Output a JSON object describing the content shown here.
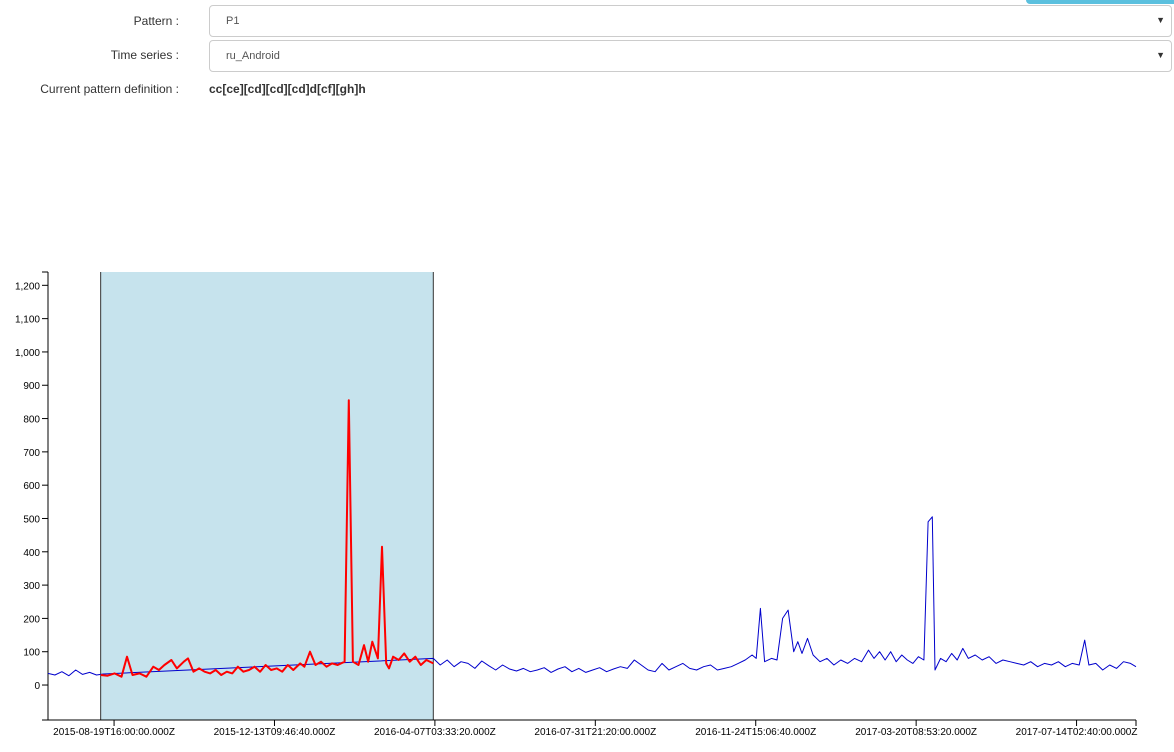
{
  "form": {
    "pattern_label": "Pattern :",
    "pattern_value": "P1",
    "timeseries_label": "Time series :",
    "timeseries_value": "ru_Android",
    "definition_label": "Current pattern definition :",
    "definition_value": "cc[ce][cd][cd][cd]d[cf][gh]h"
  },
  "colors": {
    "highlight": "#c6e3ed",
    "match_series": "#ff0000",
    "base_series": "#0000cc",
    "button": "#5bc0de"
  },
  "chart_data": {
    "type": "line",
    "ylim": [
      -105,
      1240
    ],
    "y_ticks": [
      0,
      100,
      200,
      300,
      400,
      500,
      600,
      700,
      800,
      900,
      1000,
      1100,
      1200
    ],
    "y_tick_labels": [
      "0",
      "100",
      "200",
      "300",
      "400",
      "500",
      "600",
      "700",
      "800",
      "900",
      "1,000",
      "1,100",
      "1,200"
    ],
    "x_range": [
      "2015-07-03",
      "2017-08-26"
    ],
    "x_ticks": [
      "2015-08-19T16:00:00.000Z",
      "2015-12-13T09:46:40.000Z",
      "2016-04-07T03:33:20.000Z",
      "2016-07-31T21:20:00.000Z",
      "2016-11-24T15:06:40.000Z",
      "2017-03-20T08:53:20.000Z",
      "2017-07-14T02:40:00.000Z"
    ],
    "highlight_range": [
      "2015-08-10",
      "2016-04-06"
    ],
    "series": [
      {
        "role": "base",
        "points": [
          [
            "2015-07-03",
            35
          ],
          [
            "2015-07-08",
            30
          ],
          [
            "2015-07-13",
            40
          ],
          [
            "2015-07-18",
            28
          ],
          [
            "2015-07-23",
            45
          ],
          [
            "2015-07-28",
            32
          ],
          [
            "2015-08-02",
            38
          ],
          [
            "2015-08-07",
            30
          ],
          [
            "2015-08-12",
            33
          ],
          [
            "2016-04-06",
            80
          ],
          [
            "2016-04-11",
            60
          ],
          [
            "2016-04-16",
            75
          ],
          [
            "2016-04-21",
            55
          ],
          [
            "2016-04-26",
            70
          ],
          [
            "2016-05-01",
            65
          ],
          [
            "2016-05-06",
            50
          ],
          [
            "2016-05-11",
            72
          ],
          [
            "2016-05-16",
            58
          ],
          [
            "2016-05-21",
            45
          ],
          [
            "2016-05-26",
            60
          ],
          [
            "2016-05-31",
            48
          ],
          [
            "2016-06-05",
            42
          ],
          [
            "2016-06-10",
            50
          ],
          [
            "2016-06-15",
            40
          ],
          [
            "2016-06-20",
            45
          ],
          [
            "2016-06-25",
            52
          ],
          [
            "2016-06-30",
            38
          ],
          [
            "2016-07-05",
            48
          ],
          [
            "2016-07-10",
            55
          ],
          [
            "2016-07-15",
            40
          ],
          [
            "2016-07-20",
            50
          ],
          [
            "2016-07-25",
            38
          ],
          [
            "2016-07-30",
            45
          ],
          [
            "2016-08-04",
            52
          ],
          [
            "2016-08-09",
            40
          ],
          [
            "2016-08-14",
            48
          ],
          [
            "2016-08-19",
            55
          ],
          [
            "2016-08-24",
            50
          ],
          [
            "2016-08-29",
            75
          ],
          [
            "2016-09-03",
            60
          ],
          [
            "2016-09-08",
            45
          ],
          [
            "2016-09-13",
            40
          ],
          [
            "2016-09-18",
            65
          ],
          [
            "2016-09-23",
            45
          ],
          [
            "2016-09-28",
            55
          ],
          [
            "2016-10-03",
            65
          ],
          [
            "2016-10-08",
            50
          ],
          [
            "2016-10-13",
            45
          ],
          [
            "2016-10-18",
            55
          ],
          [
            "2016-10-23",
            60
          ],
          [
            "2016-10-28",
            45
          ],
          [
            "2016-11-02",
            50
          ],
          [
            "2016-11-07",
            55
          ],
          [
            "2016-11-12",
            65
          ],
          [
            "2016-11-17",
            75
          ],
          [
            "2016-11-22",
            90
          ],
          [
            "2016-11-25",
            80
          ],
          [
            "2016-11-28",
            230
          ],
          [
            "2016-12-01",
            70
          ],
          [
            "2016-12-06",
            80
          ],
          [
            "2016-12-10",
            75
          ],
          [
            "2016-12-14",
            200
          ],
          [
            "2016-12-18",
            225
          ],
          [
            "2016-12-22",
            100
          ],
          [
            "2016-12-25",
            130
          ],
          [
            "2016-12-28",
            95
          ],
          [
            "2017-01-01",
            140
          ],
          [
            "2017-01-05",
            90
          ],
          [
            "2017-01-10",
            70
          ],
          [
            "2017-01-15",
            80
          ],
          [
            "2017-01-20",
            60
          ],
          [
            "2017-01-25",
            75
          ],
          [
            "2017-01-30",
            65
          ],
          [
            "2017-02-04",
            80
          ],
          [
            "2017-02-09",
            70
          ],
          [
            "2017-02-14",
            105
          ],
          [
            "2017-02-18",
            80
          ],
          [
            "2017-02-22",
            100
          ],
          [
            "2017-02-26",
            75
          ],
          [
            "2017-03-02",
            100
          ],
          [
            "2017-03-06",
            70
          ],
          [
            "2017-03-10",
            90
          ],
          [
            "2017-03-14",
            75
          ],
          [
            "2017-03-18",
            65
          ],
          [
            "2017-03-22",
            85
          ],
          [
            "2017-03-26",
            75
          ],
          [
            "2017-03-29",
            490
          ],
          [
            "2017-04-01",
            505
          ],
          [
            "2017-04-03",
            45
          ],
          [
            "2017-04-07",
            80
          ],
          [
            "2017-04-11",
            70
          ],
          [
            "2017-04-15",
            95
          ],
          [
            "2017-04-19",
            75
          ],
          [
            "2017-04-23",
            110
          ],
          [
            "2017-04-27",
            80
          ],
          [
            "2017-05-02",
            90
          ],
          [
            "2017-05-07",
            75
          ],
          [
            "2017-05-12",
            85
          ],
          [
            "2017-05-17",
            65
          ],
          [
            "2017-05-22",
            75
          ],
          [
            "2017-05-27",
            70
          ],
          [
            "2017-06-01",
            65
          ],
          [
            "2017-06-06",
            60
          ],
          [
            "2017-06-11",
            70
          ],
          [
            "2017-06-16",
            55
          ],
          [
            "2017-06-21",
            65
          ],
          [
            "2017-06-26",
            60
          ],
          [
            "2017-07-01",
            70
          ],
          [
            "2017-07-06",
            55
          ],
          [
            "2017-07-11",
            65
          ],
          [
            "2017-07-16",
            60
          ],
          [
            "2017-07-20",
            135
          ],
          [
            "2017-07-23",
            60
          ],
          [
            "2017-07-28",
            65
          ],
          [
            "2017-08-02",
            45
          ],
          [
            "2017-08-07",
            60
          ],
          [
            "2017-08-12",
            50
          ],
          [
            "2017-08-17",
            70
          ],
          [
            "2017-08-22",
            65
          ],
          [
            "2017-08-26",
            55
          ]
        ]
      },
      {
        "role": "matched",
        "points": [
          [
            "2015-08-10",
            30
          ],
          [
            "2015-08-15",
            28
          ],
          [
            "2015-08-20",
            35
          ],
          [
            "2015-08-25",
            25
          ],
          [
            "2015-08-29",
            85
          ],
          [
            "2015-09-02",
            30
          ],
          [
            "2015-09-07",
            35
          ],
          [
            "2015-09-12",
            25
          ],
          [
            "2015-09-17",
            55
          ],
          [
            "2015-09-21",
            45
          ],
          [
            "2015-09-25",
            60
          ],
          [
            "2015-09-30",
            75
          ],
          [
            "2015-10-04",
            50
          ],
          [
            "2015-10-09",
            70
          ],
          [
            "2015-10-12",
            80
          ],
          [
            "2015-10-16",
            40
          ],
          [
            "2015-10-20",
            50
          ],
          [
            "2015-10-24",
            40
          ],
          [
            "2015-10-28",
            35
          ],
          [
            "2015-11-01",
            45
          ],
          [
            "2015-11-05",
            30
          ],
          [
            "2015-11-09",
            40
          ],
          [
            "2015-11-13",
            35
          ],
          [
            "2015-11-17",
            55
          ],
          [
            "2015-11-21",
            40
          ],
          [
            "2015-11-25",
            45
          ],
          [
            "2015-11-29",
            55
          ],
          [
            "2015-12-03",
            40
          ],
          [
            "2015-12-07",
            60
          ],
          [
            "2015-12-11",
            45
          ],
          [
            "2015-12-15",
            50
          ],
          [
            "2015-12-19",
            40
          ],
          [
            "2015-12-23",
            60
          ],
          [
            "2015-12-27",
            45
          ],
          [
            "2016-01-01",
            65
          ],
          [
            "2016-01-04",
            55
          ],
          [
            "2016-01-08",
            100
          ],
          [
            "2016-01-12",
            60
          ],
          [
            "2016-01-16",
            70
          ],
          [
            "2016-01-20",
            55
          ],
          [
            "2016-01-24",
            65
          ],
          [
            "2016-01-28",
            60
          ],
          [
            "2016-02-02",
            70
          ],
          [
            "2016-02-05",
            855
          ],
          [
            "2016-02-08",
            70
          ],
          [
            "2016-02-12",
            60
          ],
          [
            "2016-02-16",
            120
          ],
          [
            "2016-02-19",
            70
          ],
          [
            "2016-02-22",
            130
          ],
          [
            "2016-02-26",
            80
          ],
          [
            "2016-02-29",
            415
          ],
          [
            "2016-03-03",
            65
          ],
          [
            "2016-03-05",
            50
          ],
          [
            "2016-03-08",
            85
          ],
          [
            "2016-03-12",
            75
          ],
          [
            "2016-03-16",
            95
          ],
          [
            "2016-03-20",
            70
          ],
          [
            "2016-03-24",
            85
          ],
          [
            "2016-03-28",
            60
          ],
          [
            "2016-04-01",
            75
          ],
          [
            "2016-04-06",
            65
          ]
        ]
      }
    ]
  }
}
